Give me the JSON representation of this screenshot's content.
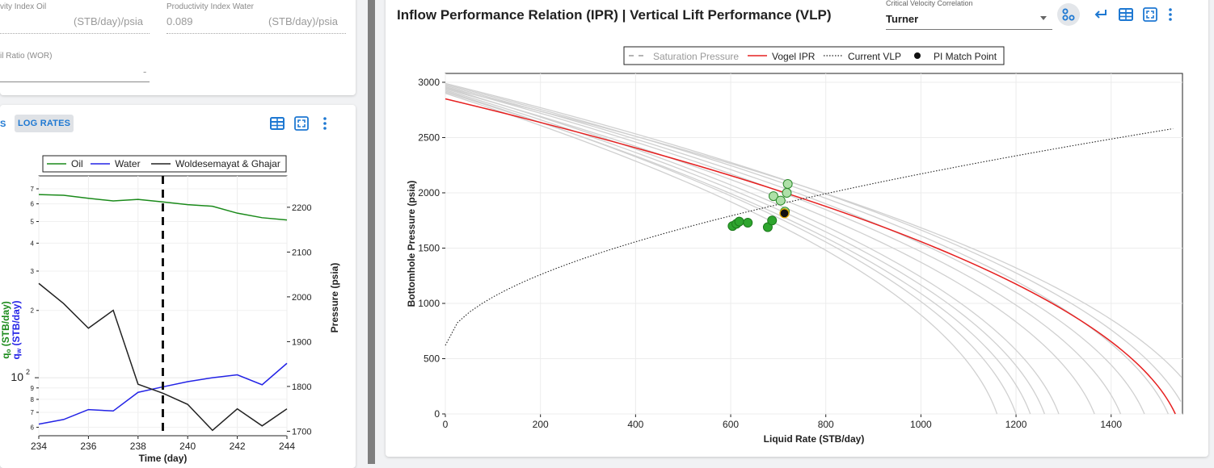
{
  "left_top": {
    "pi_oil_label": "vity Index Oil",
    "pi_oil_unit": "(STB/day)/psia",
    "pi_water_label": "Productivity Index Water",
    "pi_water_value": "0.089",
    "pi_water_unit": "(STB/day)/psia",
    "wor_label": "il Ratio (WOR)",
    "wor_value": "-"
  },
  "left_chart_toolbar": {
    "rates_tab_fragment": "S",
    "log_rates_button": "LOG RATES"
  },
  "colors": {
    "accent": "#1e78d2",
    "oil": "#1a8a1a",
    "water": "#2323e6",
    "vogel": "#e62020"
  },
  "icons": [
    "table-icon",
    "fit-screen-icon",
    "more-vert-icon",
    "nodes-icon",
    "return-icon"
  ],
  "main": {
    "title": "Inflow Performance Relation (IPR) | Vertical Lift Performance (VLP)",
    "correlation_label": "Critical Velocity Correlation",
    "correlation_value": "Turner"
  },
  "chart_data": [
    {
      "type": "line",
      "legend": [
        "Oil",
        "Water",
        "Woldesemayat & Ghajar"
      ],
      "xlabel": "Time (day)",
      "ylabel_left_1": "q",
      "ylabel_left_1_sub": "o",
      "ylabel_left_1_unit": "(STB/day)",
      "ylabel_left_2": "q",
      "ylabel_left_2_sub": "w",
      "ylabel_left_2_unit": "(STB/day)",
      "ylabel_right": "Pressure (psia)",
      "x_ticks": [
        "234",
        "236",
        "238",
        "240",
        "242",
        "244"
      ],
      "y_left_log_ticks": [
        "10",
        "2"
      ],
      "y_left_minor_ticks": [
        "7",
        "6",
        "5",
        "4",
        "3",
        "2",
        "9",
        "8",
        "7",
        "6"
      ],
      "y_left_major_label": "10",
      "y_left_major_exp": "2",
      "y_right_ticks": [
        "2200",
        "2100",
        "2000",
        "1900",
        "1800",
        "1700"
      ],
      "xlim": [
        234,
        244
      ],
      "y_right_lim": [
        1690,
        2270
      ],
      "vertical_marker_x": 239,
      "series": [
        {
          "name": "Oil",
          "x": [
            234,
            235,
            236,
            237,
            238,
            239,
            240,
            241,
            242,
            243,
            244
          ],
          "y": [
            660,
            655,
            635,
            618,
            628,
            612,
            595,
            585,
            545,
            520,
            508
          ]
        },
        {
          "name": "Water",
          "x": [
            234,
            235,
            236,
            237,
            238,
            239,
            240,
            241,
            242,
            243,
            244
          ],
          "y": [
            62,
            65,
            72,
            71,
            86,
            91,
            96,
            100,
            103,
            93,
            116
          ]
        },
        {
          "name": "Woldesemayat & Ghajar",
          "x": [
            234,
            235,
            236,
            237,
            238,
            239,
            240,
            241,
            242,
            243,
            244
          ],
          "y": [
            2030,
            1985,
            1930,
            1970,
            1805,
            1785,
            1760,
            1702,
            1750,
            1712,
            1750
          ]
        }
      ]
    },
    {
      "type": "line",
      "legend": [
        "Saturation Pressure",
        "Vogel IPR",
        "Current VLP",
        "PI Match Point"
      ],
      "xlabel": "Liquid Rate (STB/day)",
      "ylabel": "Bottomhole Pressure (psia)",
      "x_ticks": [
        0,
        200,
        400,
        600,
        800,
        1000,
        1200,
        1400
      ],
      "y_ticks": [
        0,
        500,
        1000,
        1500,
        2000,
        2500,
        3000
      ],
      "xlim": [
        0,
        1550
      ],
      "ylim": [
        0,
        3080
      ],
      "vogel_ipr": {
        "pr": 2850,
        "qmax": 1535
      },
      "history_ipr": [
        {
          "pr": 2900,
          "qmax": 1160
        },
        {
          "pr": 2920,
          "qmax": 1200
        },
        {
          "pr": 2910,
          "qmax": 1230
        },
        {
          "pr": 2930,
          "qmax": 1260
        },
        {
          "pr": 2950,
          "qmax": 1290
        },
        {
          "pr": 2940,
          "qmax": 1365
        },
        {
          "pr": 2960,
          "qmax": 1420
        },
        {
          "pr": 2970,
          "qmax": 1470
        },
        {
          "pr": 2980,
          "qmax": 1520
        },
        {
          "pr": 2990,
          "qmax": 1560
        },
        {
          "pr": 2950,
          "qmax": 1600
        }
      ],
      "vlp": {
        "x_start": 0,
        "x_end": 1530,
        "y_start": 620,
        "y_end": 2580
      },
      "points_dark": [
        [
          604,
          1700
        ],
        [
          612,
          1720
        ],
        [
          618,
          1740
        ],
        [
          636,
          1730
        ],
        [
          678,
          1690
        ],
        [
          687,
          1750
        ]
      ],
      "points_light": [
        [
          690,
          1970
        ],
        [
          705,
          1930
        ],
        [
          718,
          2000
        ],
        [
          720,
          2080
        ],
        [
          714,
          1830
        ]
      ],
      "pi_match_point": [
        713,
        1815
      ]
    }
  ]
}
